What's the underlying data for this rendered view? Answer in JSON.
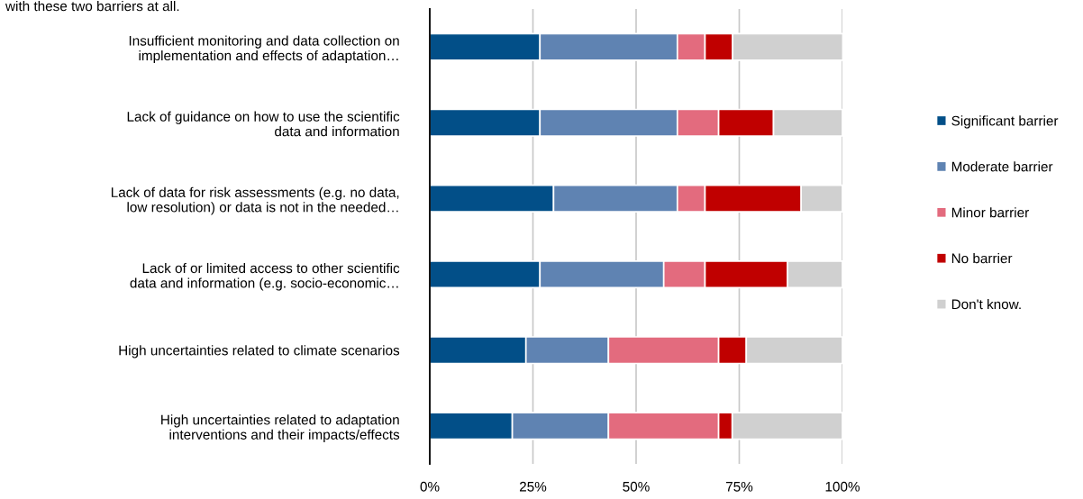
{
  "chart_data": {
    "type": "bar",
    "orientation": "horizontal",
    "stacked": true,
    "annotations": [
      "with these two barriers at all."
    ],
    "categories": [
      "Insufficient monitoring and data collection on\nimplementation and effects of adaptation…",
      "Lack of guidance on how to use the scientific\ndata and information",
      "Lack of data for risk assessments (e.g. no data,\nlow resolution) or data is not in the needed…",
      "Lack of or limited access to other scientific\ndata and information (e.g. socio-economic…",
      "High uncertainties related to climate scenarios",
      "High uncertainties related to adaptation\ninterventions and their impacts/effects"
    ],
    "series": [
      {
        "name": "Significant barrier",
        "color": "#024f88",
        "values": [
          26.7,
          26.7,
          30,
          26.7,
          23.3,
          20
        ]
      },
      {
        "name": "Moderate barrier",
        "color": "#5f83b2",
        "values": [
          33.3,
          33.3,
          30,
          30,
          20,
          23.3
        ]
      },
      {
        "name": "Minor barrier",
        "color": "#e36b7e",
        "values": [
          6.7,
          10,
          6.7,
          10,
          26.7,
          26.7
        ]
      },
      {
        "name": "No barrier",
        "color": "#c00000",
        "values": [
          6.7,
          13.3,
          23.3,
          20,
          6.7,
          3.3
        ]
      },
      {
        "name": "Don't know.",
        "color": "#d0d0d0",
        "values": [
          26.7,
          16.7,
          10,
          13.3,
          23.3,
          26.7
        ]
      }
    ],
    "xlim": [
      0,
      100
    ],
    "xticks": [
      {
        "value": 0,
        "label": "0%"
      },
      {
        "value": 25,
        "label": "25%"
      },
      {
        "value": 50,
        "label": "50%"
      },
      {
        "value": 75,
        "label": "75%"
      },
      {
        "value": 100,
        "label": "100%"
      }
    ],
    "grid": "x",
    "legend": "right"
  }
}
